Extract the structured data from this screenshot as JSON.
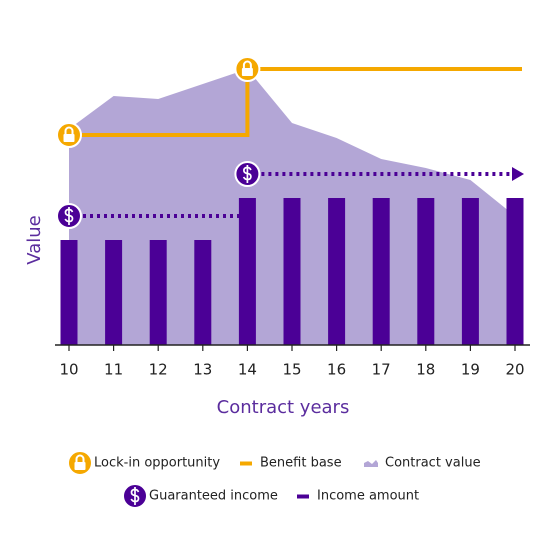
{
  "chart_data": {
    "type": "combo",
    "xlabel": "Contract years",
    "ylabel": "Value",
    "categories": [
      "10",
      "11",
      "12",
      "13",
      "14",
      "15",
      "16",
      "17",
      "18",
      "19",
      "20"
    ],
    "ylim": [
      0,
      100
    ],
    "series": [
      {
        "name": "Lock-in opportunity",
        "type": "lock",
        "color": "#f5a800",
        "values": [
          70,
          null,
          null,
          null,
          92,
          null,
          null,
          null,
          null,
          null,
          null
        ]
      },
      {
        "name": "Benefit base",
        "type": "step",
        "color": "#f5a800",
        "values": [
          70,
          70,
          70,
          70,
          92,
          92,
          92,
          92,
          92,
          92,
          92
        ]
      },
      {
        "name": "Contract value",
        "type": "area",
        "color": "#b3a6d6",
        "values": [
          72,
          83,
          82,
          87,
          92,
          74,
          69,
          62,
          59,
          55,
          43
        ]
      },
      {
        "name": "Guaranteed income",
        "type": "dotted",
        "color": "#4b0096",
        "values": [
          43,
          43,
          43,
          43,
          57,
          57,
          57,
          57,
          57,
          57,
          57
        ]
      },
      {
        "name": "Income amount",
        "type": "bar",
        "color": "#4b0096",
        "values": [
          35,
          35,
          35,
          35,
          49,
          49,
          49,
          49,
          49,
          49,
          49
        ]
      }
    ]
  }
}
